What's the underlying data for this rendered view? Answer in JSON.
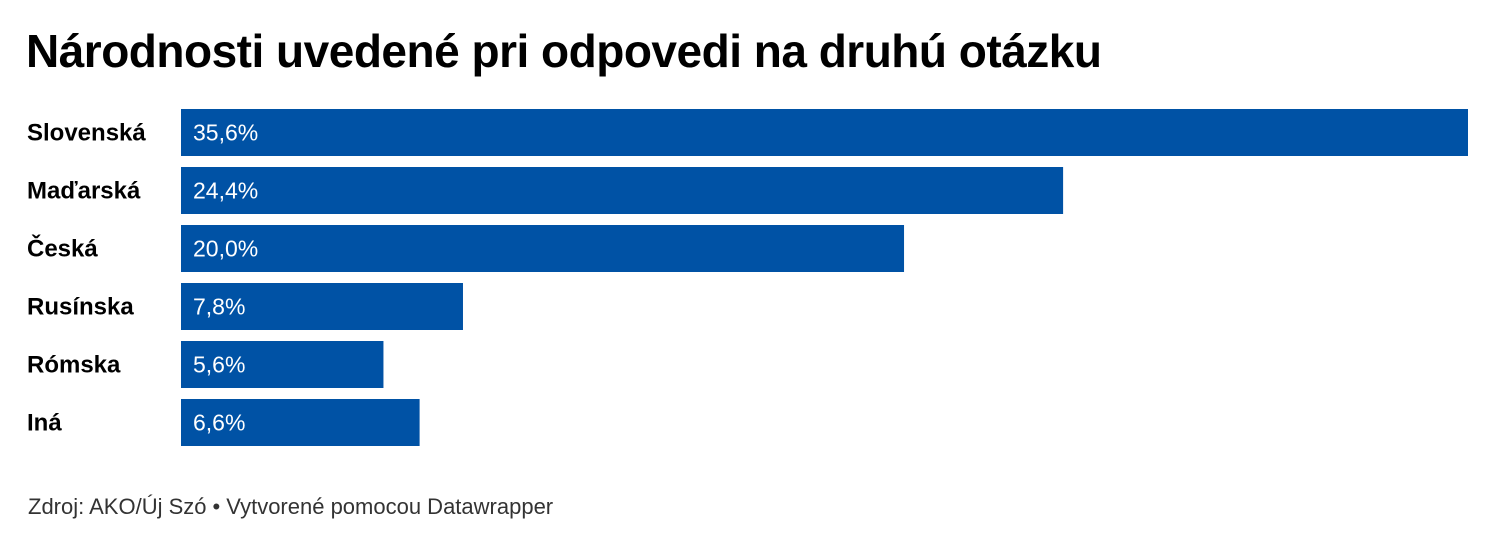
{
  "chart_data": {
    "type": "bar",
    "orientation": "horizontal",
    "title": "Národnosti uvedené pri odpovedi na druhú otázku",
    "categories": [
      "Slovenská",
      "Maďarská",
      "Česká",
      "Rusínska",
      "Rómska",
      "Iná"
    ],
    "values": [
      35.6,
      24.4,
      20.0,
      7.8,
      5.6,
      6.6
    ],
    "value_labels": [
      "35,6%",
      "24,4%",
      "20,0%",
      "7,8%",
      "5,6%",
      "6,6%"
    ],
    "unit": "%",
    "xlim": [
      0,
      35.6
    ],
    "grid": false,
    "legend": "none",
    "bar_color": "#0052a5",
    "label_color": "#ffffff"
  },
  "footer": {
    "source": "Zdroj: AKO/Új Szó",
    "separator": "•",
    "credit": "Vytvorené pomocou Datawrapper"
  }
}
